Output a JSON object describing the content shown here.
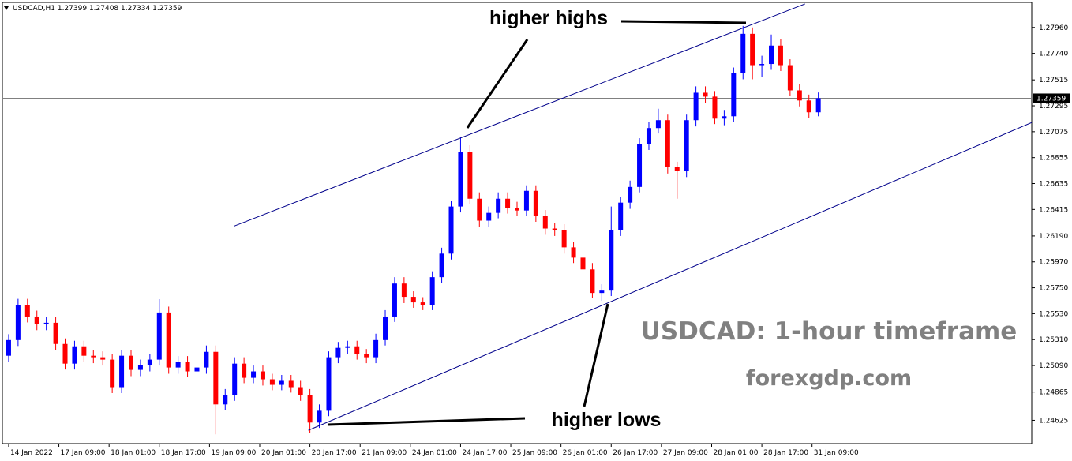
{
  "chart_data": {
    "type": "candlestick",
    "symbol": "USDCAD,H1",
    "ohlc_info": [
      1.27399,
      1.27408,
      1.27334,
      1.27359
    ],
    "current_price": 1.27359,
    "up_color": "#0000ff",
    "down_color": "#ff0000",
    "trendline_color": "#00008b",
    "x": [
      0,
      3,
      6,
      9,
      12,
      15,
      18,
      21,
      24,
      27,
      30,
      33,
      36,
      39,
      42,
      45,
      48,
      51,
      54,
      57,
      60,
      63,
      66,
      69,
      72,
      75,
      78,
      81,
      84,
      87,
      90,
      93,
      96,
      99,
      102,
      105,
      108,
      111,
      114,
      117,
      120,
      123,
      126,
      129,
      132,
      135,
      138,
      141,
      144,
      147,
      150,
      153,
      156,
      159,
      162,
      165,
      168,
      171,
      174,
      177,
      180,
      183,
      186,
      189,
      192,
      195,
      198,
      201,
      204,
      207,
      210,
      213,
      216,
      219,
      222,
      225,
      228,
      231,
      234,
      237,
      240,
      243,
      246,
      249,
      252,
      255,
      258
    ],
    "open": [
      1.25173,
      1.25306,
      1.25606,
      1.25506,
      1.2544,
      1.25453,
      1.25273,
      1.25106,
      1.25253,
      1.25173,
      1.2516,
      1.2514,
      1.24906,
      1.25173,
      1.25053,
      1.25093,
      1.2514,
      1.2554,
      1.25073,
      1.2512,
      1.2504,
      1.25073,
      1.25206,
      1.2476,
      1.2484,
      1.25106,
      1.24986,
      1.2504,
      1.24973,
      1.24926,
      1.2496,
      1.24906,
      1.2484,
      1.24606,
      1.24706,
      1.2516,
      1.2524,
      1.25253,
      1.25186,
      1.2516,
      1.25306,
      1.25506,
      1.25786,
      1.25673,
      1.25626,
      1.25606,
      1.2584,
      1.2604,
      1.2644,
      1.26906,
      1.26506,
      1.2632,
      1.26386,
      1.26506,
      1.26426,
      1.26406,
      1.26573,
      1.2636,
      1.26253,
      1.2624,
      1.26093,
      1.26006,
      1.25906,
      1.25706,
      1.25726,
      1.2624,
      1.26473,
      1.26606,
      1.26973,
      1.27106,
      1.27173,
      1.26773,
      1.2674,
      1.27173,
      1.27406,
      1.27373,
      1.27186,
      1.27206,
      1.27573,
      1.27906,
      1.2764,
      1.2765,
      1.27806,
      1.2764,
      1.27426,
      1.2734,
      1.2724
    ],
    "high": [
      1.25356,
      1.25656,
      1.25656,
      1.25556,
      1.255,
      1.255,
      1.2532,
      1.253,
      1.253,
      1.2522,
      1.2521,
      1.2519,
      1.2522,
      1.2522,
      1.2514,
      1.2519,
      1.25653,
      1.2559,
      1.2517,
      1.2517,
      1.2512,
      1.2526,
      1.2526,
      1.2489,
      1.2516,
      1.2516,
      1.2509,
      1.2509,
      1.2502,
      1.2501,
      1.2501,
      1.2496,
      1.2489,
      1.2476,
      1.2521,
      1.2529,
      1.253,
      1.253,
      1.2523,
      1.2536,
      1.2556,
      1.2584,
      1.2584,
      1.2572,
      1.2567,
      1.2589,
      1.2609,
      1.2649,
      1.27026,
      1.2696,
      1.2656,
      1.2644,
      1.2656,
      1.2656,
      1.2648,
      1.2662,
      1.2662,
      1.2641,
      1.263,
      1.2629,
      1.2614,
      1.2606,
      1.2596,
      1.2578,
      1.2644,
      1.2652,
      1.2666,
      1.2702,
      1.2716,
      1.2727,
      1.2722,
      1.2682,
      1.2722,
      1.2746,
      1.2746,
      1.2742,
      1.2726,
      1.2762,
      1.27973,
      1.2796,
      1.2772,
      1.279,
      1.2786,
      1.2769,
      1.2748,
      1.2739,
      1.27408
    ],
    "low": [
      1.25123,
      1.25256,
      1.25456,
      1.2539,
      1.2539,
      1.25223,
      1.25056,
      1.25056,
      1.25123,
      1.2511,
      1.2509,
      1.24856,
      1.24856,
      1.25,
      1.25,
      1.2504,
      1.2509,
      1.2502,
      1.2502,
      1.2499,
      1.2499,
      1.2502,
      1.24506,
      1.2471,
      1.2479,
      1.2494,
      1.2494,
      1.2492,
      1.2488,
      1.2488,
      1.2486,
      1.2479,
      1.2452,
      1.2456,
      1.2466,
      1.2511,
      1.2519,
      1.2514,
      1.2511,
      1.2511,
      1.2526,
      1.2546,
      1.2562,
      1.2558,
      1.2556,
      1.2556,
      1.2579,
      1.2599,
      1.2639,
      1.2646,
      1.2627,
      1.2627,
      1.2634,
      1.2638,
      1.2636,
      1.2636,
      1.2631,
      1.262,
      1.2619,
      1.2604,
      1.2596,
      1.2586,
      1.2566,
      1.2564,
      1.2568,
      1.2619,
      1.2642,
      1.2656,
      1.2692,
      1.2706,
      1.2672,
      1.26506,
      1.2669,
      1.2712,
      1.2732,
      1.2714,
      1.2713,
      1.2716,
      1.2752,
      1.2752,
      1.2754,
      1.276,
      1.2759,
      1.2738,
      1.2729,
      1.2719,
      1.27206
    ],
    "close": [
      1.25306,
      1.25606,
      1.25506,
      1.2544,
      1.25453,
      1.25273,
      1.25106,
      1.25253,
      1.25173,
      1.2516,
      1.2514,
      1.24906,
      1.25173,
      1.25053,
      1.25093,
      1.2514,
      1.2554,
      1.25073,
      1.2512,
      1.2504,
      1.25073,
      1.25206,
      1.2476,
      1.2484,
      1.25106,
      1.24986,
      1.2504,
      1.24973,
      1.24926,
      1.2496,
      1.24906,
      1.2484,
      1.24606,
      1.24706,
      1.2516,
      1.2524,
      1.25253,
      1.25186,
      1.2516,
      1.25306,
      1.25506,
      1.25786,
      1.25673,
      1.25626,
      1.25606,
      1.2584,
      1.2604,
      1.2644,
      1.26906,
      1.26506,
      1.2632,
      1.26386,
      1.26506,
      1.26426,
      1.26406,
      1.26573,
      1.2636,
      1.26253,
      1.2624,
      1.26093,
      1.26006,
      1.25906,
      1.25706,
      1.25726,
      1.2624,
      1.26473,
      1.26606,
      1.26973,
      1.27106,
      1.27173,
      1.26773,
      1.2674,
      1.27173,
      1.27406,
      1.27373,
      1.27186,
      1.27206,
      1.27573,
      1.27906,
      1.2764,
      1.2765,
      1.27806,
      1.2764,
      1.27426,
      1.2734,
      1.2724,
      1.27359
    ],
    "trendlines": [
      {
        "x": [
          71.75,
          253.75
        ],
        "y": [
          1.26273,
          1.2816
        ]
      },
      {
        "x": [
          95.5,
          326
        ],
        "y": [
          1.2454,
          1.27153
        ]
      }
    ],
    "xlim": [
      -2,
      326
    ],
    "ylim": [
      1.24427,
      1.28173
    ],
    "xticks": [
      {
        "value": 0,
        "label": "14 Jan 2022"
      },
      {
        "value": 16,
        "label": "17 Jan 09:00"
      },
      {
        "value": 32,
        "label": "18 Jan 01:00"
      },
      {
        "value": 48,
        "label": "18 Jan 17:00"
      },
      {
        "value": 64,
        "label": "19 Jan 09:00"
      },
      {
        "value": 80,
        "label": "20 Jan 01:00"
      },
      {
        "value": 96,
        "label": "20 Jan 17:00"
      },
      {
        "value": 112,
        "label": "21 Jan 09:00"
      },
      {
        "value": 128,
        "label": "24 Jan 01:00"
      },
      {
        "value": 144,
        "label": "24 Jan 17:00"
      },
      {
        "value": 160,
        "label": "25 Jan 09:00"
      },
      {
        "value": 176,
        "label": "26 Jan 01:00"
      },
      {
        "value": 192,
        "label": "26 Jan 17:00"
      },
      {
        "value": 208,
        "label": "27 Jan 09:00"
      },
      {
        "value": 224,
        "label": "28 Jan 01:00"
      },
      {
        "value": 240,
        "label": "28 Jan 17:00"
      },
      {
        "value": 256,
        "label": "31 Jan 09:00"
      }
    ],
    "yticks": [
      {
        "value": 1.2796,
        "label": "1.27960"
      },
      {
        "value": 1.2774,
        "label": "1.27740"
      },
      1.27515,
      1.27295,
      1.27075,
      1.26855,
      1.26635,
      1.26415,
      {
        "value": 1.2619,
        "label": "1.26190"
      },
      {
        "value": 1.2597,
        "label": "1.25970"
      },
      {
        "value": 1.2575,
        "label": "1.25750"
      },
      {
        "value": 1.2553,
        "label": "1.25530"
      },
      {
        "value": 1.2531,
        "label": "1.25310"
      },
      {
        "value": 1.2509,
        "label": "1.25090"
      },
      1.24865,
      1.24625
    ],
    "annotations": {
      "higher_highs": "higher highs",
      "higher_lows": "higher lows"
    },
    "watermark": {
      "title": "USDCAD: 1-hour timeframe",
      "site": "forexgdp.com"
    }
  }
}
